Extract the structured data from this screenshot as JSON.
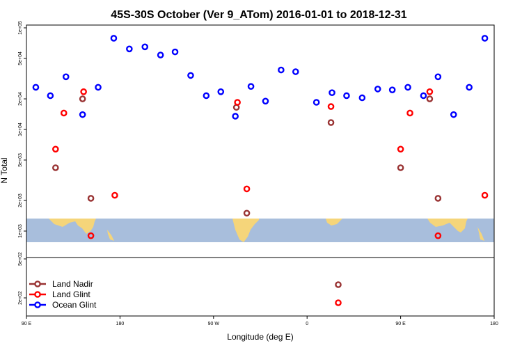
{
  "chart_data": {
    "type": "scatter",
    "title": "45S-30S October (Ver 9_ATom)   2016-01-01 to 2018-12-31",
    "xlabel": "Longitude (deg E)",
    "ylabel": "N Total",
    "x_scale": "linear",
    "xlim": [
      90,
      540
    ],
    "x_ticks": [
      {
        "value": 90,
        "label": "90 E"
      },
      {
        "value": 180,
        "label": "180"
      },
      {
        "value": 270,
        "label": "90 W"
      },
      {
        "value": 360,
        "label": "0"
      },
      {
        "value": 450,
        "label": "90 E"
      },
      {
        "value": 540,
        "label": "180"
      }
    ],
    "y_scale": "log",
    "ylim": [
      700,
      100000
    ],
    "y_ticks": [
      {
        "value": 100000,
        "label": "1e+05"
      },
      {
        "value": 50000,
        "label": "5e+04"
      },
      {
        "value": 20000,
        "label": "2e+04"
      },
      {
        "value": 10000,
        "label": "1e+04"
      },
      {
        "value": 5000,
        "label": "5e+03"
      },
      {
        "value": 2000,
        "label": "2e+03"
      },
      {
        "value": 1000,
        "label": "1e+03"
      }
    ],
    "lower_panel_ticks": [
      {
        "label": "5e+02"
      },
      {
        "label": "2e+02"
      }
    ],
    "legend_position": "bottom-left",
    "series": [
      {
        "name": "Land Nadir",
        "color": "#993333",
        "points": [
          {
            "x": 118,
            "y": 4200
          },
          {
            "x": 144,
            "y": 20000
          },
          {
            "x": 152,
            "y": 2100
          },
          {
            "x": 292,
            "y": 16500
          },
          {
            "x": 302,
            "y": 1500
          },
          {
            "x": 383,
            "y": 11700
          },
          {
            "x": 450,
            "y": 4200
          },
          {
            "x": 478,
            "y": 20000
          },
          {
            "x": 486,
            "y": 2100
          }
        ],
        "lower_panel_points": [
          {
            "x": 390
          }
        ]
      },
      {
        "name": "Land Glint",
        "color": "#ff0000",
        "points": [
          {
            "x": 118,
            "y": 6400
          },
          {
            "x": 126,
            "y": 14500
          },
          {
            "x": 145,
            "y": 23500
          },
          {
            "x": 152,
            "y": 900
          },
          {
            "x": 175,
            "y": 2250
          },
          {
            "x": 293,
            "y": 18500
          },
          {
            "x": 302,
            "y": 2600
          },
          {
            "x": 383,
            "y": 16800
          },
          {
            "x": 450,
            "y": 6400
          },
          {
            "x": 459,
            "y": 14500
          },
          {
            "x": 478,
            "y": 23500
          },
          {
            "x": 486,
            "y": 900
          },
          {
            "x": 531,
            "y": 2250
          }
        ],
        "lower_panel_points": [
          {
            "x": 390
          }
        ]
      },
      {
        "name": "Ocean Glint",
        "color": "#0000ff",
        "points": [
          {
            "x": 99,
            "y": 26000
          },
          {
            "x": 113,
            "y": 21500
          },
          {
            "x": 128,
            "y": 33000
          },
          {
            "x": 144,
            "y": 14000
          },
          {
            "x": 159,
            "y": 26000
          },
          {
            "x": 174,
            "y": 79000
          },
          {
            "x": 189,
            "y": 62000
          },
          {
            "x": 204,
            "y": 65000
          },
          {
            "x": 219,
            "y": 54000
          },
          {
            "x": 233,
            "y": 58000
          },
          {
            "x": 248,
            "y": 34000
          },
          {
            "x": 263,
            "y": 21500
          },
          {
            "x": 277,
            "y": 23500
          },
          {
            "x": 291,
            "y": 13500
          },
          {
            "x": 306,
            "y": 26500
          },
          {
            "x": 320,
            "y": 19000
          },
          {
            "x": 335,
            "y": 38500
          },
          {
            "x": 349,
            "y": 37000
          },
          {
            "x": 369,
            "y": 18500
          },
          {
            "x": 384,
            "y": 23000
          },
          {
            "x": 398,
            "y": 21500
          },
          {
            "x": 413,
            "y": 20500
          },
          {
            "x": 428,
            "y": 25000
          },
          {
            "x": 442,
            "y": 24500
          },
          {
            "x": 457,
            "y": 26000
          },
          {
            "x": 472,
            "y": 21500
          },
          {
            "x": 486,
            "y": 33000
          },
          {
            "x": 501,
            "y": 14000
          },
          {
            "x": 516,
            "y": 26000
          },
          {
            "x": 531,
            "y": 79000
          }
        ]
      }
    ]
  },
  "colors": {
    "ocean": "#a8bedc",
    "land": "#f5d57a"
  }
}
